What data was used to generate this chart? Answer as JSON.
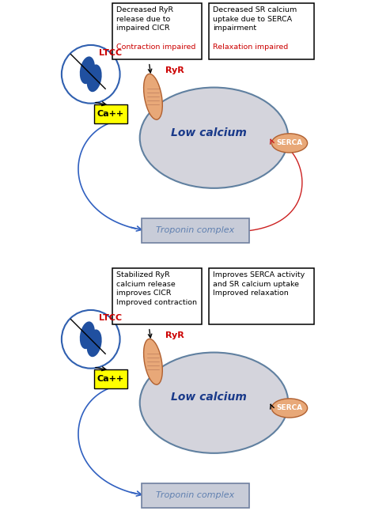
{
  "panel1": {
    "box1_text": "Decreased RyR\nrelease due to\nimpaired CICR",
    "box1_red": "Contraction impaired",
    "box2_text": "Decreased SR calcium\nuptake due to SERCA\nimpairment",
    "box2_red": "Relaxation impaired",
    "sr_label": "Low calcium",
    "troponin_label": "Troponin complex",
    "ltcc_label": "LTCC",
    "ca_label": "Ca++",
    "ryr_label": "RyR",
    "serca_label": "SERCA",
    "has_red_arc": true
  },
  "panel2": {
    "box1_text": "Stabilized RyR\ncalcium release\nimproves CICR\nImproved contraction",
    "box1_red": null,
    "box2_text": "Improves SERCA activity\nand SR calcium uptake\nImproved relaxation",
    "box2_red": null,
    "sr_label": "Low calcium",
    "troponin_label": "Troponin complex",
    "ltcc_label": "LTCC",
    "ca_label": "Ca++",
    "ryr_label": "RyR",
    "serca_label": "SERCA",
    "has_red_arc": false
  },
  "colors": {
    "background": "#ffffff",
    "sr_fill": "#d4d4dc",
    "sr_edge": "#6080a0",
    "sr_text": "#1a3a8a",
    "ltcc_circle_edge": "#3060b0",
    "ltcc_body": "#2050a0",
    "ryr_fill": "#e8a878",
    "ryr_edge": "#b06030",
    "serca_fill": "#e8a878",
    "serca_edge": "#b06030",
    "ca_box": "#ffff00",
    "box_edge": "#000000",
    "arrow_blue": "#3060c0",
    "arrow_red": "#cc2020",
    "red_text": "#cc0000",
    "troponin_fill": "#c8ccd8",
    "troponin_edge": "#7080a0",
    "troponin_text": "#6080b0"
  }
}
